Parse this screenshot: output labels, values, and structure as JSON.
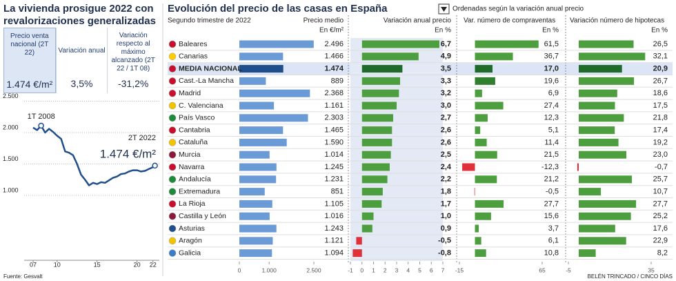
{
  "header": {
    "title": "La vivienda prosigue 2022 con revalorizaciones generalizadas"
  },
  "summary": {
    "headers": [
      "Precio venta nacional (2T 22)",
      "Variación anual",
      "Variación respecto al máximo alcanzado (2T 22 / 1T 08)"
    ],
    "values": [
      "1.474 €/m²",
      "3,5%",
      "-31,2%"
    ]
  },
  "table": {
    "title": "Evolución del precio de las casas en España",
    "sort_note": "Ordenadas según la variación anual precio",
    "subtitle": "Segundo trimestre de 2022"
  },
  "chart_data": [
    {
      "type": "line",
      "color": "#1f4e8c",
      "x": [
        2007,
        2007.5,
        2008,
        2008.5,
        2009,
        2009.5,
        2010,
        2010.5,
        2011,
        2011.5,
        2012,
        2012.5,
        2013,
        2013.5,
        2014,
        2014.5,
        2015,
        2015.5,
        2016,
        2016.5,
        2017,
        2017.5,
        2018,
        2018.5,
        2019,
        2019.5,
        2020,
        2020.5,
        2021,
        2021.5,
        2022,
        2022.25
      ],
      "values": [
        2080,
        2040,
        2110,
        2000,
        2060,
        2010,
        1950,
        1900,
        1700,
        1680,
        1640,
        1500,
        1330,
        1250,
        1160,
        1200,
        1180,
        1210,
        1200,
        1240,
        1280,
        1300,
        1340,
        1350,
        1380,
        1400,
        1400,
        1380,
        1390,
        1420,
        1450,
        1474
      ],
      "xlim": [
        2006.6,
        2022.8
      ],
      "ylim": [
        0,
        2550
      ],
      "xticks": [
        {
          "value": 2007,
          "label": "07"
        },
        {
          "value": 2010,
          "label": "10"
        },
        {
          "value": 2015,
          "label": "15"
        },
        {
          "value": 2020,
          "label": "20"
        },
        {
          "value": 2022,
          "label": "22"
        }
      ],
      "yticks": [
        {
          "value": 1000,
          "label": "1.000"
        },
        {
          "value": 1500,
          "label": "1.500"
        },
        {
          "value": 2000,
          "label": "2.000"
        },
        {
          "value": 2500,
          "label": "2.500"
        }
      ],
      "annotations": [
        "1T 2008",
        "2T 2022",
        "1.474 €/m²"
      ],
      "grid": true
    },
    {
      "type": "bar",
      "orientation": "horizontal",
      "title": "Precio medio",
      "unit": "En €/m²",
      "categories": [
        "Baleares",
        "Canarias",
        "MEDIA NACIONAL",
        "Cast.-La Mancha",
        "Madrid",
        "C. Valenciana",
        "País Vasco",
        "Cantabria",
        "Cataluña",
        "Murcia",
        "Navarra",
        "Andalucía",
        "Extremadura",
        "La Rioja",
        "Castilla y León",
        "Asturias",
        "Aragón",
        "Galicia"
      ],
      "values": [
        2496,
        1466,
        1474,
        889,
        2368,
        1161,
        2303,
        1465,
        1590,
        1014,
        1245,
        1231,
        851,
        1105,
        1016,
        1243,
        1121,
        1094
      ],
      "value_labels": [
        "2.496",
        "1.466",
        "1.474",
        "889",
        "2.368",
        "1.161",
        "2.303",
        "1.465",
        "1.590",
        "1.014",
        "1.245",
        "1.231",
        "851",
        "1.105",
        "1.016",
        "1.243",
        "1.121",
        "1.094"
      ],
      "colors": [
        "#6b9bd6",
        "#6b9bd6",
        "#1f4e8c",
        "#6b9bd6",
        "#6b9bd6",
        "#6b9bd6",
        "#6b9bd6",
        "#6b9bd6",
        "#6b9bd6",
        "#6b9bd6",
        "#6b9bd6",
        "#6b9bd6",
        "#6b9bd6",
        "#6b9bd6",
        "#6b9bd6",
        "#6b9bd6",
        "#6b9bd6",
        "#6b9bd6"
      ],
      "xlim": [
        0,
        2600
      ],
      "xticks": [
        0,
        {
          "value": 1000,
          "label": "1.000"
        },
        {
          "value": 2500,
          "label": "2.500"
        }
      ]
    },
    {
      "type": "bar",
      "orientation": "horizontal",
      "title": "Variación anual precio",
      "unit": "En %",
      "values": [
        6.7,
        4.9,
        3.5,
        3.3,
        3.2,
        3.0,
        2.7,
        2.6,
        2.6,
        2.5,
        2.4,
        2.2,
        1.8,
        1.7,
        1.0,
        0.9,
        -0.5,
        -0.8
      ],
      "value_labels": [
        "6,7",
        "4,9",
        "3,5",
        "3,3",
        "3,2",
        "3,0",
        "2,7",
        "2,6",
        "2,6",
        "2,5",
        "2,4",
        "2,2",
        "1,8",
        "1,7",
        "1,0",
        "0,9",
        "-0,5",
        "-0,8"
      ],
      "colors": [
        "#4c9e3f",
        "#4c9e3f",
        "#1e6b2a",
        "#4c9e3f",
        "#4c9e3f",
        "#4c9e3f",
        "#4c9e3f",
        "#4c9e3f",
        "#4c9e3f",
        "#4c9e3f",
        "#4c9e3f",
        "#4c9e3f",
        "#4c9e3f",
        "#4c9e3f",
        "#4c9e3f",
        "#4c9e3f",
        "#e0313b",
        "#e0313b"
      ],
      "xlim": [
        -1,
        7.3
      ],
      "xticks": [
        -1,
        0,
        1,
        2,
        3,
        4,
        5,
        6,
        7
      ]
    },
    {
      "type": "bar",
      "orientation": "horizontal",
      "title": "Var. número de compraventas",
      "unit": "En %",
      "values": [
        61.5,
        36.7,
        17.0,
        19.6,
        6.9,
        27.4,
        12.3,
        5.1,
        11.4,
        21.5,
        -12.3,
        21.2,
        -0.5,
        27.7,
        15.6,
        3.7,
        6.1,
        10.8
      ],
      "value_labels": [
        "61,5",
        "36,7",
        "17,0",
        "19,6",
        "6,9",
        "27,4",
        "12,3",
        "5,1",
        "11,4",
        "21,5",
        "-12,3",
        "21,2",
        "-0,5",
        "27,7",
        "15,6",
        "3,7",
        "6,1",
        "10,8"
      ],
      "colors": [
        "#4c9e3f",
        "#4c9e3f",
        "#1e6b2a",
        "#2f7f2f",
        "#4c9e3f",
        "#4c9e3f",
        "#4c9e3f",
        "#4c9e3f",
        "#4c9e3f",
        "#4c9e3f",
        "#e0313b",
        "#4c9e3f",
        "#e0313b",
        "#4c9e3f",
        "#4c9e3f",
        "#4c9e3f",
        "#4c9e3f",
        "#4c9e3f"
      ],
      "xlim": [
        -15,
        68
      ],
      "xticks": [
        -15,
        65
      ]
    },
    {
      "type": "bar",
      "orientation": "horizontal",
      "title": "Variación número de hipotecas",
      "unit": "En %",
      "values": [
        26.5,
        32.1,
        20.9,
        26.7,
        18.6,
        17.5,
        21.8,
        17.4,
        19.2,
        23.0,
        -0.7,
        25.7,
        10.7,
        27.7,
        25.2,
        17.6,
        22.9,
        8.2
      ],
      "value_labels": [
        "26,5",
        "32,1",
        "20,9",
        "26,7",
        "18,6",
        "17,5",
        "21,8",
        "17,4",
        "19,2",
        "23,0",
        "-0,7",
        "25,7",
        "10,7",
        "27,7",
        "25,2",
        "17,6",
        "22,9",
        "8,2"
      ],
      "colors": [
        "#4c9e3f",
        "#4c9e3f",
        "#1e6b2a",
        "#4c9e3f",
        "#4c9e3f",
        "#4c9e3f",
        "#4c9e3f",
        "#4c9e3f",
        "#4c9e3f",
        "#4c9e3f",
        "#e0313b",
        "#4c9e3f",
        "#4c9e3f",
        "#4c9e3f",
        "#4c9e3f",
        "#4c9e3f",
        "#4c9e3f",
        "#4c9e3f"
      ],
      "xlim": [
        -5,
        37
      ],
      "xticks": [
        -5,
        35
      ]
    }
  ],
  "source": "Fuente: Gesvalt",
  "credit": "BELÉN TRINCADO / CINCO DÍAS"
}
